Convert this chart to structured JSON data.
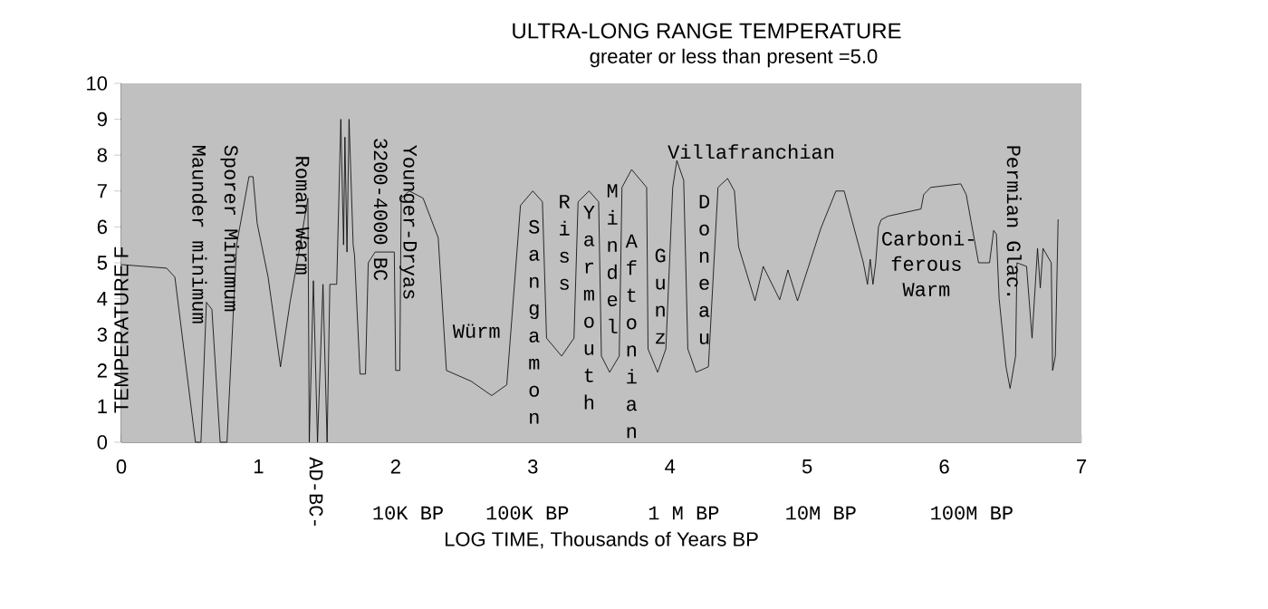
{
  "chart_data": {
    "type": "line",
    "title": "ULTRA-LONG RANGE TEMPERATURE",
    "subtitle": "greater or less than present =5.0",
    "xlabel": "LOG TIME, Thousands of Years BP",
    "ylabel": "TEMPERATURE F",
    "xlim": [
      0,
      7
    ],
    "ylim": [
      0,
      10
    ],
    "xticks": [
      0,
      1,
      2,
      3,
      4,
      5,
      6,
      7
    ],
    "yticks": [
      0,
      1,
      2,
      3,
      4,
      5,
      6,
      7,
      8,
      9,
      10
    ],
    "x": [
      0,
      0.33,
      0.39,
      0.54,
      0.58,
      0.62,
      0.66,
      0.72,
      0.77,
      0.84,
      0.93,
      0.96,
      0.99,
      1.07,
      1.16,
      1.23,
      1.29,
      1.36,
      1.37,
      1.4,
      1.43,
      1.47,
      1.5,
      1.52,
      1.57,
      1.6,
      1.62,
      1.63,
      1.645,
      1.66,
      1.69,
      1.7,
      1.74,
      1.78,
      1.8,
      1.85,
      1.99,
      2.0,
      2.03,
      2.04,
      2.1,
      2.2,
      2.31,
      2.37,
      2.55,
      2.7,
      2.81,
      2.91,
      3.0,
      3.07,
      3.1,
      3.21,
      3.3,
      3.33,
      3.41,
      3.48,
      3.5,
      3.56,
      3.63,
      3.65,
      3.72,
      3.83,
      3.84,
      3.91,
      3.97,
      4.02,
      4.05,
      4.1,
      4.13,
      4.19,
      4.28,
      4.35,
      4.42,
      4.47,
      4.5,
      4.62,
      4.68,
      4.8,
      4.86,
      4.93,
      5.1,
      5.21,
      5.27,
      5.41,
      5.44,
      5.46,
      5.48,
      5.5,
      5.52,
      5.54,
      5.59,
      5.83,
      5.85,
      5.9,
      6.12,
      6.16,
      6.25,
      6.33,
      6.36,
      6.38,
      6.4,
      6.45,
      6.48,
      6.52,
      6.53,
      6.6,
      6.64,
      6.68,
      6.7,
      6.72,
      6.78,
      6.79,
      6.81,
      6.83
    ],
    "series": [
      {
        "color": "#000000",
        "values": [
          4.95,
          4.85,
          4.6,
          0,
          0,
          3.9,
          3.7,
          0,
          0,
          5.5,
          7.4,
          7.4,
          6.1,
          4.6,
          2.1,
          3.9,
          5.2,
          6.8,
          0,
          4.5,
          0,
          4.4,
          0,
          4.4,
          4.4,
          9.0,
          5.5,
          8.5,
          5.3,
          9.0,
          5.5,
          5.2,
          1.9,
          1.9,
          5.0,
          5.3,
          5.3,
          2.0,
          2.0,
          6.8,
          7.0,
          6.8,
          5.7,
          2.0,
          1.7,
          1.3,
          1.6,
          6.6,
          7.0,
          6.7,
          2.9,
          2.4,
          2.9,
          6.7,
          7.0,
          6.7,
          2.4,
          1.95,
          2.4,
          7.1,
          7.6,
          7.1,
          2.6,
          1.95,
          2.6,
          7.1,
          7.85,
          7.3,
          2.6,
          1.95,
          2.1,
          7.1,
          7.35,
          7.0,
          5.45,
          3.94,
          4.9,
          3.97,
          4.8,
          3.94,
          5.96,
          7.0,
          7.0,
          5.0,
          4.4,
          5.1,
          4.4,
          5.0,
          6.0,
          6.2,
          6.3,
          6.5,
          6.9,
          7.1,
          7.2,
          6.9,
          5.0,
          5.0,
          5.9,
          5.8,
          4.0,
          2.1,
          1.5,
          2.4,
          5.0,
          4.9,
          2.9,
          5.4,
          4.3,
          5.4,
          5.0,
          2.0,
          2.4,
          6.2
        ]
      }
    ],
    "annotations": [
      "Maunder minimum",
      "Sporer Minumum",
      "Roman Warm",
      "3200-4000 BC",
      "Younger-Dryas",
      "Würm",
      "Sangamon",
      "Riss",
      "Yarmouth",
      "Mindel",
      "Aftonian",
      "Gunz",
      "Doneau",
      "Villafranchian",
      "Carboni- ferous Warm",
      "Permian Glac.",
      "AD-BC-",
      "10K BP",
      "100K BP",
      "1 M BP",
      "10M BP",
      "100M BP"
    ]
  }
}
